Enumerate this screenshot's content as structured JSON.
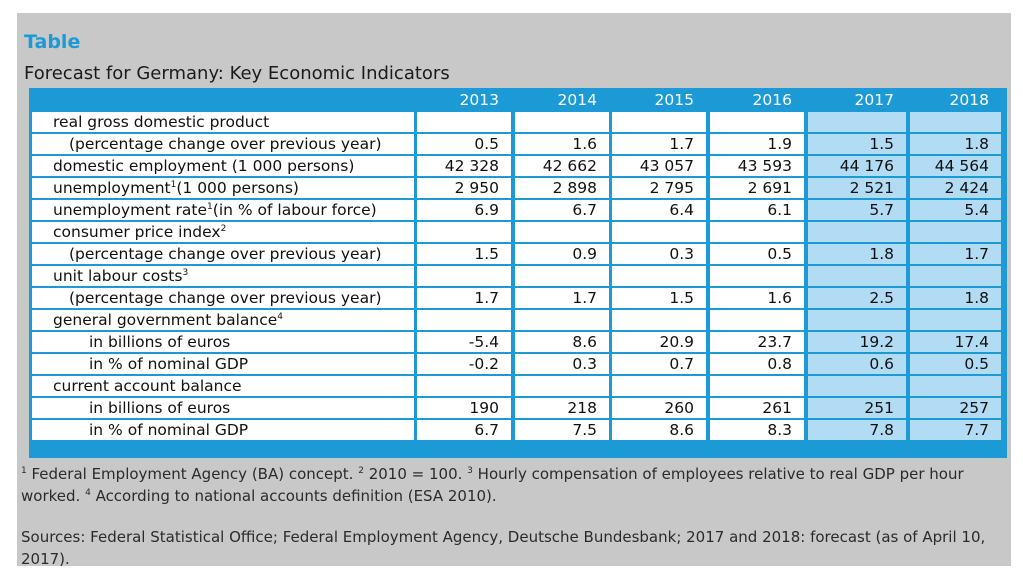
{
  "tag": "Table",
  "title": "Forecast for Germany: Key Economic Indicators",
  "years": [
    "2013",
    "2014",
    "2015",
    "2016",
    "2017",
    "2018"
  ],
  "rows": [
    {
      "label": "real gross domestic product",
      "indent": 1,
      "values": [
        "",
        "",
        "",
        "",
        "",
        ""
      ]
    },
    {
      "label": "(percentage change over previous year)",
      "indent": 2,
      "values": [
        "0.5",
        "1.6",
        "1.7",
        "1.9",
        "1.5",
        "1.8"
      ]
    },
    {
      "label": "domestic employment (1 000 persons)",
      "indent": 1,
      "values": [
        "42 328",
        "42 662",
        "43 057",
        "43 593",
        "44 176",
        "44 564"
      ]
    },
    {
      "label": "unemployment",
      "sup": "1",
      "suffix": " (1 000 persons)",
      "indent": 1,
      "values": [
        "2 950",
        "2 898",
        "2 795",
        "2 691",
        "2 521",
        "2 424"
      ]
    },
    {
      "label": "unemployment rate",
      "sup": "1",
      "suffix": " (in % of labour force)",
      "indent": 1,
      "values": [
        "6.9",
        "6.7",
        "6.4",
        "6.1",
        "5.7",
        "5.4"
      ]
    },
    {
      "label": "consumer price index",
      "sup": "2",
      "suffix": "",
      "indent": 1,
      "values": [
        "",
        "",
        "",
        "",
        "",
        ""
      ]
    },
    {
      "label": "(percentage change over previous year)",
      "indent": 2,
      "values": [
        "1.5",
        "0.9",
        "0.3",
        "0.5",
        "1.8",
        "1.7"
      ]
    },
    {
      "label": "unit labour costs",
      "sup": "3",
      "suffix": "",
      "indent": 1,
      "values": [
        "",
        "",
        "",
        "",
        "",
        ""
      ]
    },
    {
      "label": "(percentage change over previous year)",
      "indent": 2,
      "values": [
        "1.7",
        "1.7",
        "1.5",
        "1.6",
        "2.5",
        "1.8"
      ]
    },
    {
      "label": "general government balance",
      "sup": "4",
      "suffix": "",
      "indent": 1,
      "values": [
        "",
        "",
        "",
        "",
        "",
        ""
      ]
    },
    {
      "label": "in billions of euros",
      "indent": 3,
      "values": [
        "-5.4",
        "8.6",
        "20.9",
        "23.7",
        "19.2",
        "17.4"
      ]
    },
    {
      "label": "in % of nominal GDP",
      "indent": 3,
      "values": [
        "-0.2",
        "0.3",
        "0.7",
        "0.8",
        "0.6",
        "0.5"
      ]
    },
    {
      "label": "current account balance",
      "indent": 1,
      "values": [
        "",
        "",
        "",
        "",
        "",
        ""
      ]
    },
    {
      "label": "in billions of euros",
      "indent": 3,
      "values": [
        "190",
        "218",
        "260",
        "261",
        "251",
        "257"
      ]
    },
    {
      "label": "in % of nominal GDP",
      "indent": 3,
      "values": [
        "6.7",
        "7.5",
        "8.6",
        "8.3",
        "7.8",
        "7.7"
      ]
    }
  ],
  "footnotes": {
    "n1": "1",
    "t1": " Federal Employment Agency (BA) concept. ",
    "n2": "2",
    "t2": " 2010 = 100. ",
    "n3": "3",
    "t3": " Hourly compensation of employees relative to real GDP per hour worked. ",
    "n4": "4",
    "t4": " According to national accounts definition (ESA 2010)."
  },
  "sources": "Sources: Federal Statistical Office; Federal Employment Agency, Deutsche Bundesbank; 2017 and 2018: forecast (as of April 10, 2017)."
}
